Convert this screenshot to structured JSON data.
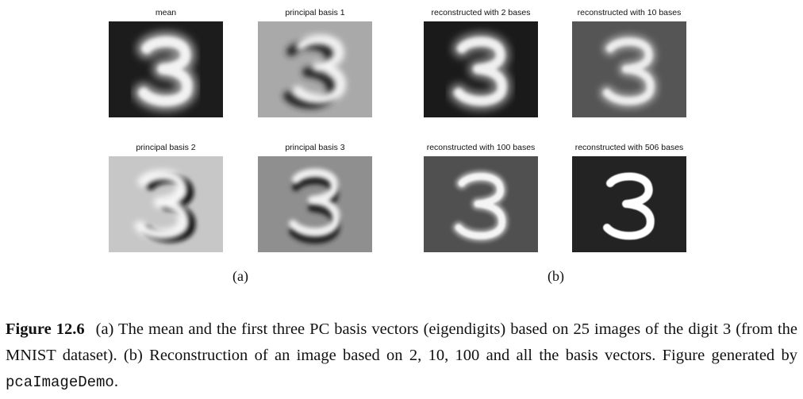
{
  "panels": [
    {
      "title": "mean",
      "style": "mean",
      "bg": "#1c1c1c"
    },
    {
      "title": "principal basis 1",
      "style": "basis1",
      "bg": "#a9a9a9"
    },
    {
      "title": "reconstructed with 2 bases",
      "style": "recon2",
      "bg": "#1a1a1a"
    },
    {
      "title": "reconstructed with 10 bases",
      "style": "recon10",
      "bg": "#555555"
    },
    {
      "title": "principal basis 2",
      "style": "basis2",
      "bg": "#c7c7c7"
    },
    {
      "title": "principal basis 3",
      "style": "basis3",
      "bg": "#8f8f8f"
    },
    {
      "title": "reconstructed with 100 bases",
      "style": "recon100",
      "bg": "#505050"
    },
    {
      "title": "reconstructed with 506 bases",
      "style": "recon506",
      "bg": "#232323"
    }
  ],
  "sublabels": {
    "a": "(a)",
    "b": "(b)"
  },
  "caption": {
    "label": "Figure 12.6",
    "text": "(a) The mean and the first three PC basis vectors (eigendigits) based on 25 images of the digit 3 (from the MNIST dataset). (b) Reconstruction of an image based on 2, 10, 100 and all the basis vectors. Figure generated by ",
    "code": "pcaImageDemo",
    "end": "."
  }
}
